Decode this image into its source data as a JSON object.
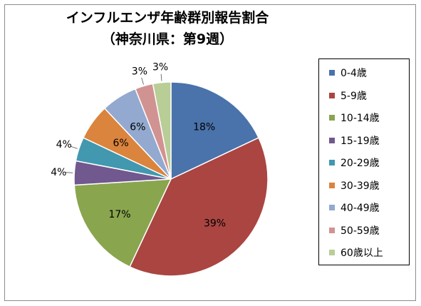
{
  "chart_data": {
    "type": "pie",
    "title": "インフルエンザ年齢群別報告割合",
    "subtitle": "（神奈川県：第9週）",
    "categories": [
      "0-4歳",
      "5-9歳",
      "10-14歳",
      "15-19歳",
      "20-29歳",
      "30-39歳",
      "40-49歳",
      "50-59歳",
      "60歳以上"
    ],
    "values": [
      18,
      39,
      17,
      4,
      4,
      6,
      6,
      3,
      3
    ],
    "labels": [
      "18%",
      "39%",
      "17%",
      "4%",
      "4%",
      "6%",
      "6%",
      "3%",
      "3%"
    ],
    "colors": [
      "#4a72ab",
      "#aa4542",
      "#89a54e",
      "#71588f",
      "#4198af",
      "#db843d",
      "#93a9cf",
      "#d19392",
      "#b9cd96"
    ],
    "legend_position": "right"
  }
}
